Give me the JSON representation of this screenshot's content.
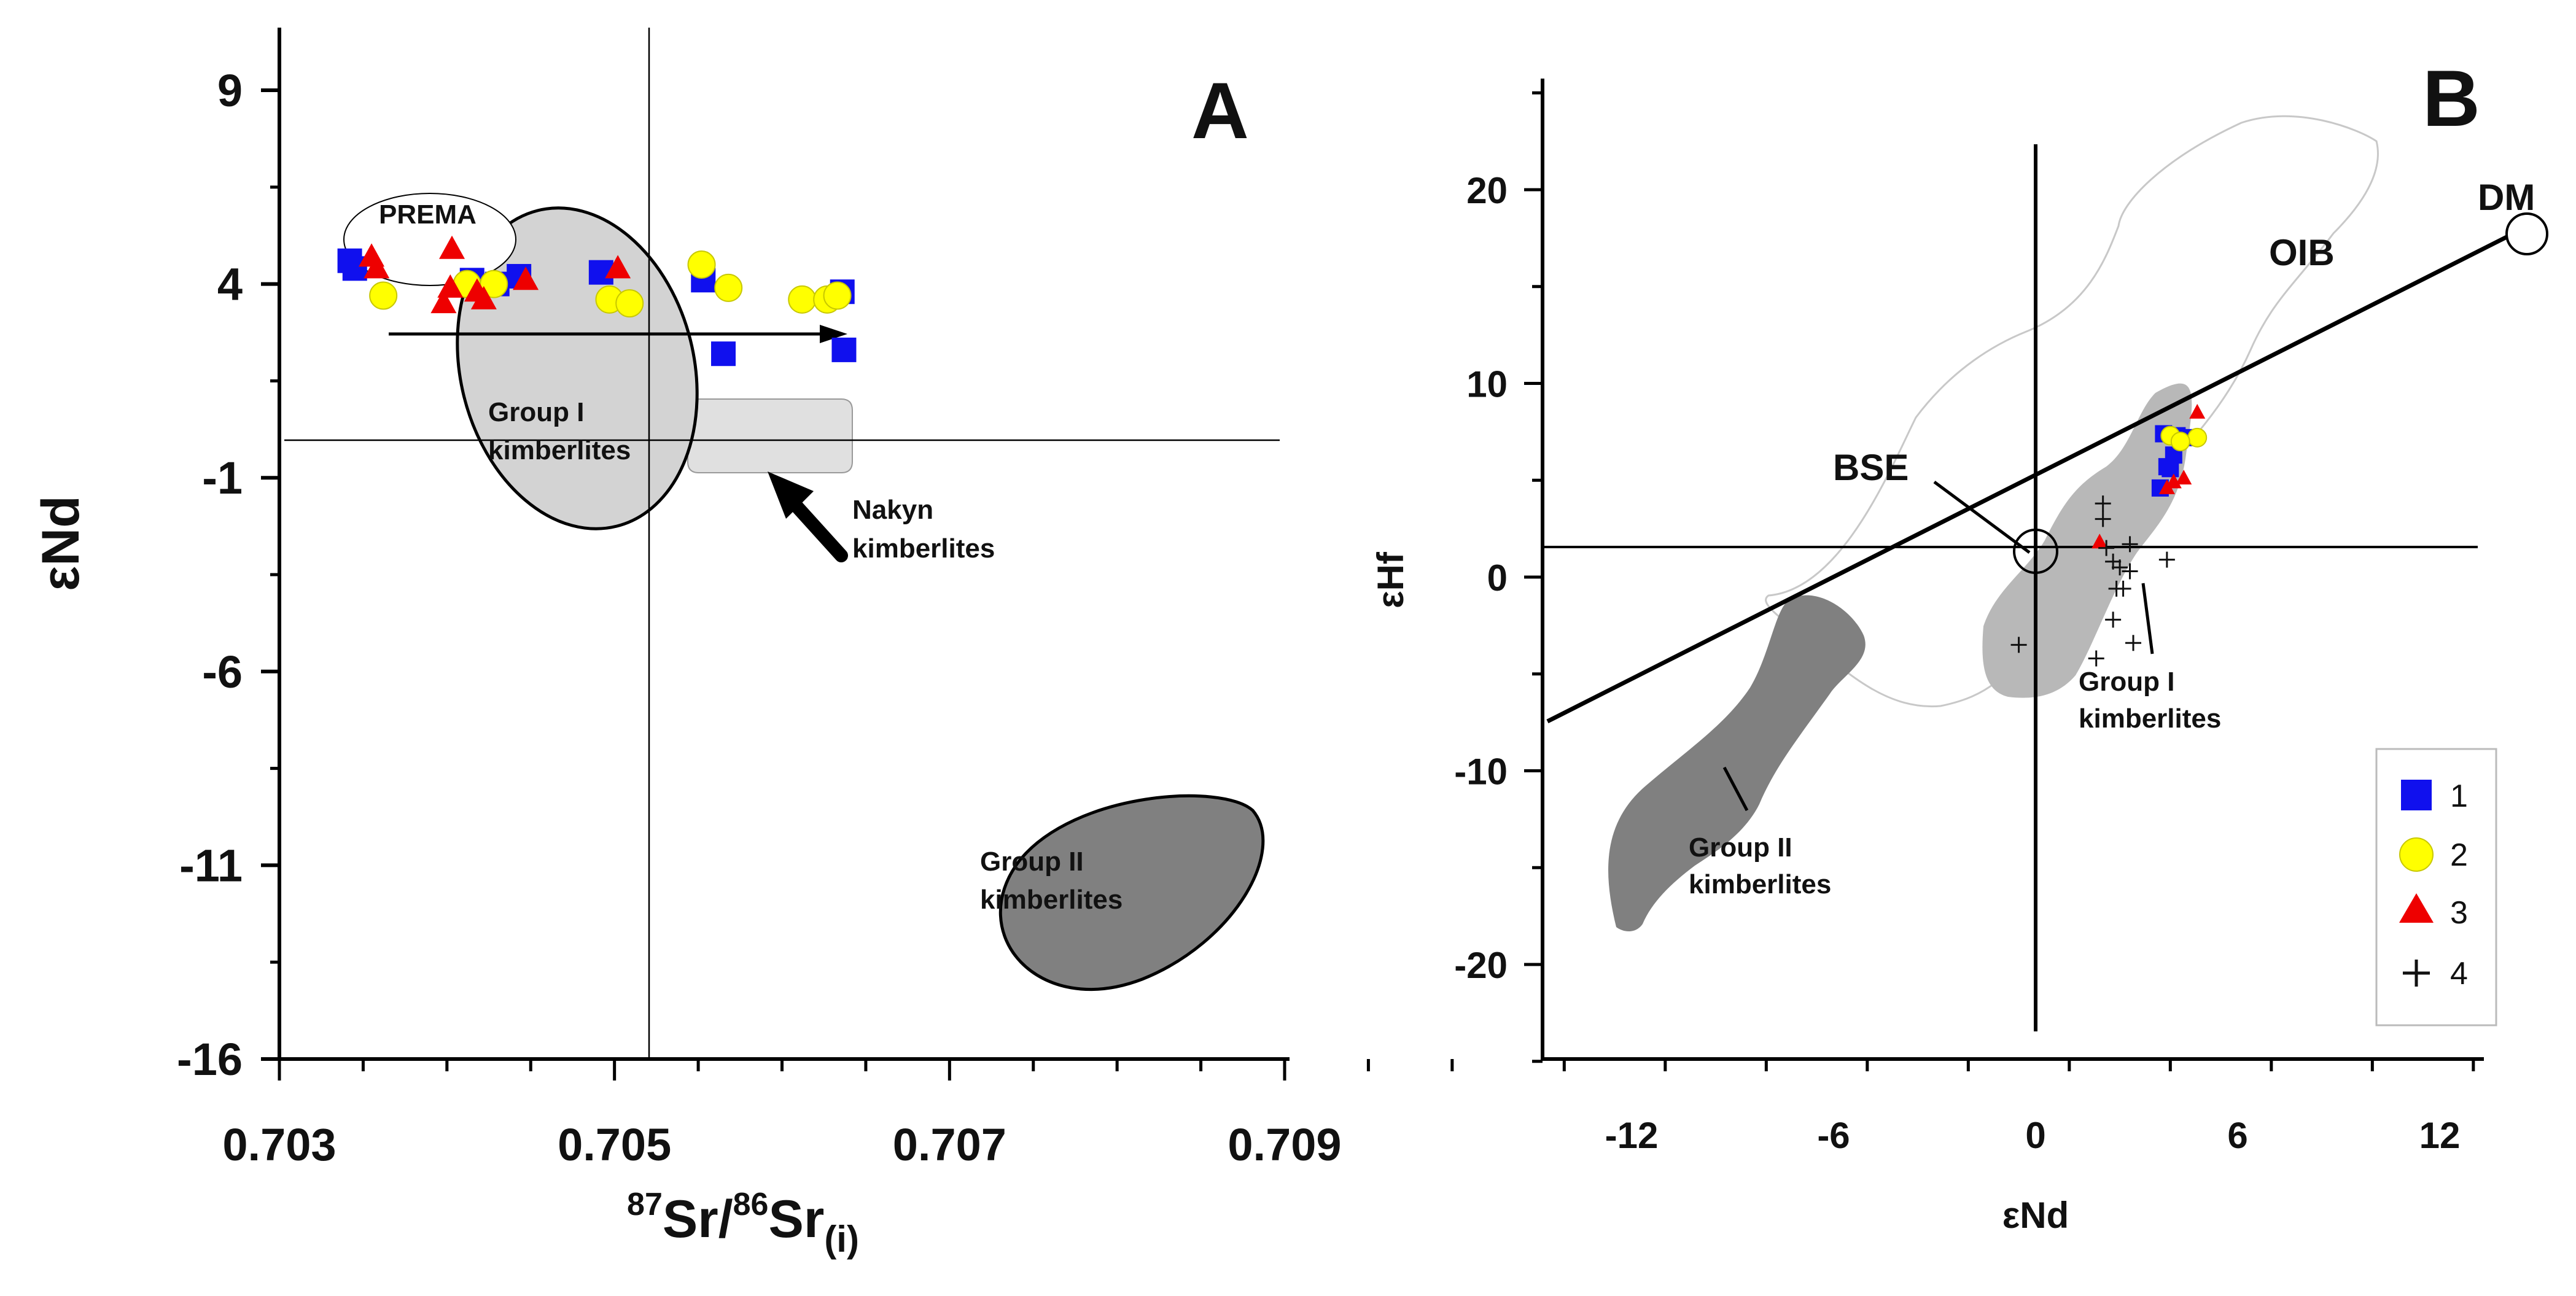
{
  "panels": {
    "a": {
      "letter": "A"
    },
    "b": {
      "letter": "B"
    }
  },
  "chart_data": [
    {
      "type": "scatter",
      "panel": "A",
      "title": "",
      "xlabel_parts": [
        "87",
        "Sr/",
        "86",
        "Sr",
        "(i)"
      ],
      "ylabel": "εNd",
      "xlim": [
        0.703,
        0.71
      ],
      "ylim": [
        -16,
        10
      ],
      "x_ticks": [
        0.703,
        0.705,
        0.707,
        0.709
      ],
      "x_tick_labels": [
        "0.703",
        "0.705",
        "0.707",
        "0.709"
      ],
      "y_ticks": [
        9,
        4,
        -1,
        -6,
        -11,
        -16
      ],
      "y_tick_labels": [
        "9",
        "4",
        "-1",
        "-6",
        "-11",
        "-16"
      ],
      "reference_lines": {
        "x": 0.70557,
        "y": -0.1
      },
      "regions": [
        {
          "label": "PREMA",
          "fill": "#ffffff"
        },
        {
          "label_lines": [
            "Group I",
            "kimberlites"
          ],
          "fill": "#d3d3d3"
        },
        {
          "label_lines": [
            "Nakyn",
            "kimberlites"
          ],
          "fill": "#e0e0e0"
        },
        {
          "label_lines": [
            "Group II",
            "kimberlites"
          ],
          "fill": "#808080"
        }
      ],
      "trend_arrow": {
        "from": [
          0.70365,
          3.1
        ],
        "to": [
          0.7064,
          3.1
        ]
      },
      "series": [
        {
          "legend": "1",
          "marker": "square",
          "color": "#1010ee",
          "x": [
            0.70342,
            0.70345,
            0.70415,
            0.7043,
            0.70443,
            0.70492,
            0.70553,
            0.70565,
            0.70636,
            0.70637
          ],
          "y": [
            4.6,
            4.4,
            4.1,
            4.0,
            4.2,
            4.3,
            4.1,
            2.2,
            3.8,
            2.3
          ]
        },
        {
          "legend": "2",
          "marker": "circle",
          "color": "#ffff00",
          "x": [
            0.70362,
            0.70412,
            0.70428,
            0.70497,
            0.70509,
            0.70552,
            0.70568,
            0.70612,
            0.70627,
            0.70633
          ],
          "y": [
            3.7,
            4.0,
            4.0,
            3.6,
            3.5,
            4.5,
            3.9,
            3.6,
            3.6,
            3.7
          ]
        },
        {
          "legend": "3",
          "marker": "triangle",
          "color": "#ee0000",
          "x": [
            0.70355,
            0.70358,
            0.70403,
            0.70398,
            0.70402,
            0.70418,
            0.70422,
            0.70447,
            0.70502
          ],
          "y": [
            4.7,
            4.4,
            4.9,
            3.5,
            3.9,
            3.8,
            3.6,
            4.1,
            4.4
          ]
        }
      ]
    },
    {
      "type": "scatter",
      "panel": "B",
      "title": "",
      "xlabel": "εNd",
      "ylabel": "εHf",
      "xlim": [
        -14,
        14
      ],
      "ylim": [
        -25,
        25
      ],
      "x_ticks": [
        -12,
        -6,
        0,
        6,
        12
      ],
      "x_tick_labels": [
        "-12",
        "-6",
        "0",
        "6",
        "12"
      ],
      "y_ticks": [
        20,
        10,
        0,
        -10,
        -20
      ],
      "y_tick_labels": [
        "20",
        "10",
        "0",
        "-10",
        "-20"
      ],
      "reference_lines": {
        "x": 0,
        "y": 1.4
      },
      "array_line": {
        "from": [
          -14.5,
          -7.5
        ],
        "to": [
          14,
          17.6
        ]
      },
      "points_labeled": [
        {
          "label": "DM",
          "x": 14,
          "y": 17.6
        },
        {
          "label": "BSE",
          "x": 0,
          "y": 1.3
        }
      ],
      "regions": [
        {
          "label": "OIB",
          "fill": "none"
        },
        {
          "label_lines": [
            "Group I",
            "kimberlites"
          ],
          "fill": "#b8b8b8"
        },
        {
          "label_lines": [
            "Group II",
            "kimberlites"
          ],
          "fill": "#808080"
        }
      ],
      "series": [
        {
          "name": "1",
          "marker": "square",
          "color": "#1010ee",
          "x": [
            3.8,
            4.2,
            4.5,
            3.9,
            4.1,
            4.0,
            3.7
          ],
          "y": [
            7.4,
            7.3,
            7.2,
            5.7,
            6.3,
            5.6,
            4.6
          ]
        },
        {
          "name": "2",
          "marker": "circle",
          "color": "#ffff00",
          "x": [
            4.0,
            4.8,
            4.3
          ],
          "y": [
            7.3,
            7.2,
            7.0
          ]
        },
        {
          "name": "3",
          "marker": "triangle",
          "color": "#ee0000",
          "x": [
            4.8,
            4.4,
            4.1,
            3.9,
            1.9
          ],
          "y": [
            8.5,
            5.1,
            4.9,
            4.6,
            1.8
          ]
        },
        {
          "name": "4",
          "marker": "plus",
          "color": "#111111",
          "x": [
            2.0,
            2.0,
            2.1,
            2.8,
            2.3,
            2.5,
            2.8,
            2.6,
            2.4,
            2.3,
            2.9,
            1.8,
            -0.5,
            3.9
          ],
          "y": [
            3.8,
            3.0,
            1.5,
            1.7,
            0.8,
            0.5,
            0.3,
            -0.6,
            -0.6,
            -2.2,
            -3.4,
            -4.2,
            -3.5,
            0.9
          ]
        }
      ],
      "legend": {
        "placement": "bottom-right",
        "entries": [
          "1",
          "2",
          "3",
          "4"
        ]
      }
    }
  ]
}
